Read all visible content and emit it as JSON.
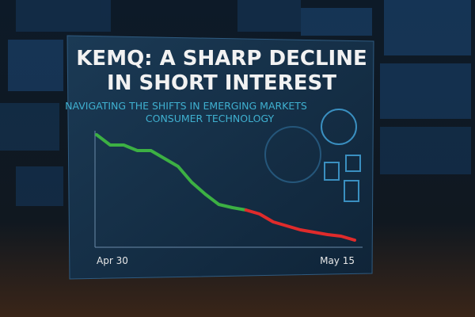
{
  "chart_data": {
    "type": "line",
    "title": [
      "KEMQ: A SHARP DECLINE",
      "IN SHORT INTEREST"
    ],
    "subtitle": [
      "NAVIGATING THE SHIFTS IN EMERGING MARKETS",
      "CONSUMER TECHNOLOGY"
    ],
    "categories": [
      "Apr 30",
      null,
      null,
      null,
      null,
      null,
      null,
      null,
      null,
      null,
      null,
      null,
      null,
      null,
      null,
      null,
      null,
      null,
      null,
      "May 15"
    ],
    "series": [
      {
        "color": "#3cb043",
        "values": [
          140,
          127,
          127,
          120,
          120,
          110,
          100,
          80,
          65,
          52,
          48,
          45,
          null,
          null,
          null,
          null,
          null,
          null,
          null,
          null
        ]
      },
      {
        "color": "#e02b2b",
        "values": [
          null,
          null,
          null,
          null,
          null,
          null,
          null,
          null,
          null,
          null,
          null,
          45,
          40,
          30,
          25,
          20,
          17,
          14,
          12,
          7
        ]
      }
    ]
  }
}
